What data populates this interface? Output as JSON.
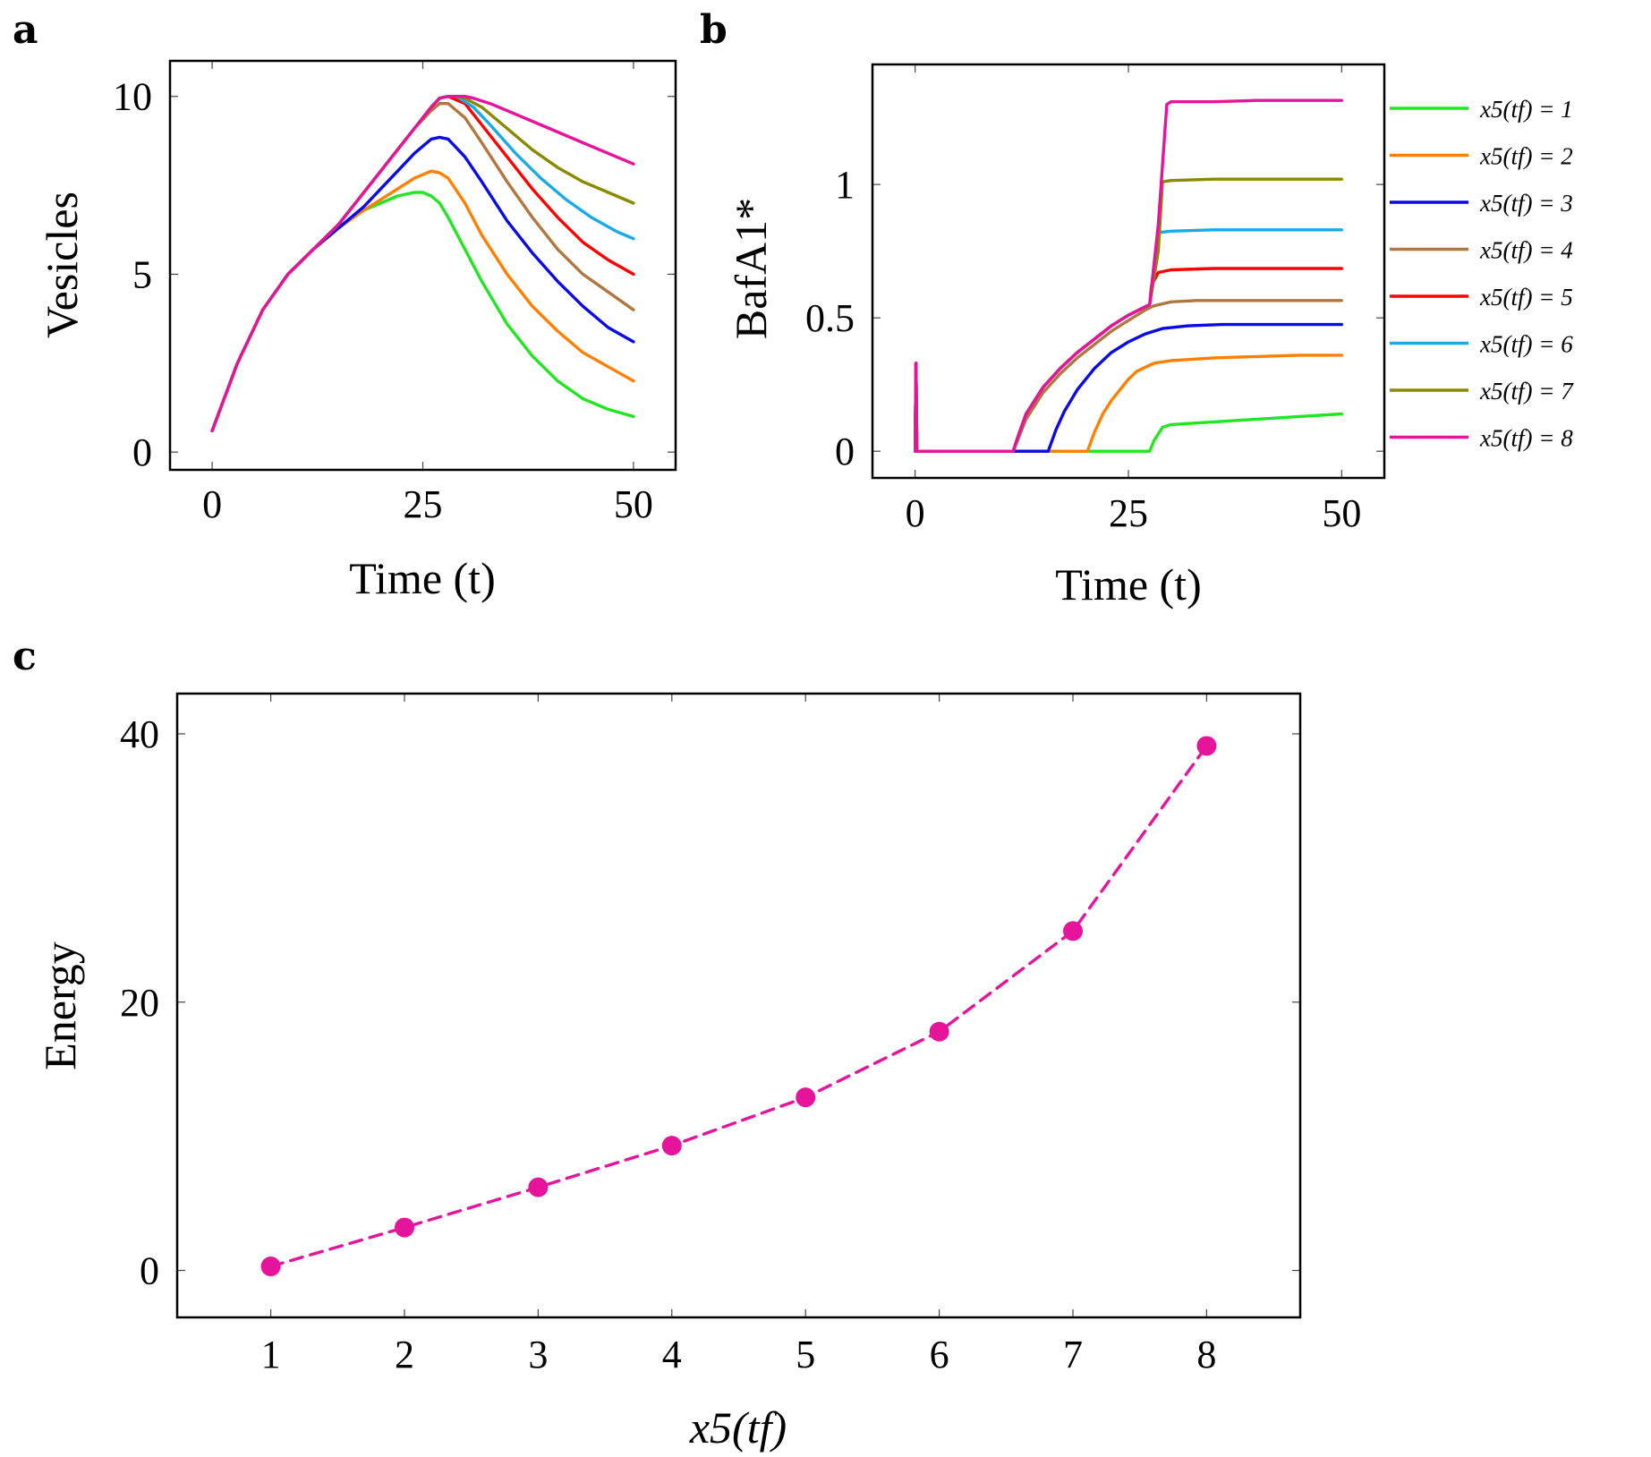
{
  "chart_data": [
    {
      "panel": "a",
      "type": "line",
      "title": "",
      "xlabel": "Time (t)",
      "ylabel": "Vesicles",
      "xlim": [
        -5,
        55
      ],
      "ylim": [
        -0.5,
        11
      ],
      "xticks": [
        0,
        25,
        50
      ],
      "yticks": [
        0,
        5,
        10
      ],
      "grid": false,
      "series": [
        {
          "color": "#22e622",
          "x": [
            0,
            3,
            6,
            9,
            12,
            15,
            18,
            20,
            22,
            24,
            25,
            26,
            27,
            28,
            30,
            32,
            35,
            38,
            41,
            44,
            47,
            50
          ],
          "y": [
            0.6,
            2.5,
            4.0,
            5.0,
            5.7,
            6.3,
            6.8,
            7.0,
            7.2,
            7.3,
            7.3,
            7.2,
            7.0,
            6.6,
            5.7,
            4.8,
            3.6,
            2.7,
            2.0,
            1.5,
            1.2,
            1.0
          ]
        },
        {
          "color": "#ff8000",
          "x": [
            0,
            3,
            6,
            9,
            12,
            15,
            18,
            20,
            22,
            24,
            26,
            27,
            28,
            30,
            32,
            35,
            38,
            41,
            44,
            47,
            50
          ],
          "y": [
            0.6,
            2.5,
            4.0,
            5.0,
            5.7,
            6.3,
            6.8,
            7.1,
            7.4,
            7.7,
            7.9,
            7.85,
            7.7,
            7.0,
            6.1,
            5.0,
            4.1,
            3.4,
            2.8,
            2.4,
            2.0
          ]
        },
        {
          "color": "#0a0ae6",
          "x": [
            0,
            3,
            6,
            9,
            12,
            15,
            18,
            20,
            22,
            24,
            26,
            27,
            28,
            30,
            32,
            35,
            38,
            41,
            44,
            47,
            50
          ],
          "y": [
            0.6,
            2.5,
            4.0,
            5.0,
            5.7,
            6.3,
            6.9,
            7.4,
            7.9,
            8.4,
            8.8,
            8.85,
            8.8,
            8.3,
            7.6,
            6.5,
            5.6,
            4.8,
            4.1,
            3.5,
            3.1
          ]
        },
        {
          "color": "#b07840",
          "x": [
            0,
            3,
            6,
            9,
            12,
            15,
            18,
            21,
            24,
            26,
            27,
            28,
            30,
            32,
            35,
            38,
            41,
            44,
            47,
            50
          ],
          "y": [
            0.6,
            2.5,
            4.0,
            5.0,
            5.7,
            6.4,
            7.3,
            8.2,
            9.1,
            9.6,
            9.8,
            9.8,
            9.4,
            8.7,
            7.6,
            6.6,
            5.7,
            5.0,
            4.5,
            4.0
          ]
        },
        {
          "color": "#ff0000",
          "x": [
            0,
            3,
            6,
            9,
            12,
            15,
            18,
            21,
            24,
            26,
            27,
            28,
            30,
            32,
            35,
            38,
            41,
            44,
            47,
            50
          ],
          "y": [
            0.6,
            2.5,
            4.0,
            5.0,
            5.7,
            6.4,
            7.3,
            8.2,
            9.1,
            9.7,
            9.95,
            10.0,
            9.8,
            9.2,
            8.3,
            7.4,
            6.6,
            5.9,
            5.4,
            5.0
          ]
        },
        {
          "color": "#1aaae6",
          "x": [
            0,
            3,
            6,
            9,
            12,
            15,
            18,
            21,
            24,
            26,
            27,
            28,
            29,
            31,
            33,
            36,
            39,
            42,
            45,
            48,
            50
          ],
          "y": [
            0.6,
            2.5,
            4.0,
            5.0,
            5.7,
            6.4,
            7.3,
            8.2,
            9.1,
            9.7,
            9.95,
            10.0,
            10.0,
            9.7,
            9.2,
            8.4,
            7.7,
            7.1,
            6.6,
            6.2,
            6.0
          ]
        },
        {
          "color": "#8a8a00",
          "x": [
            0,
            3,
            6,
            9,
            12,
            15,
            18,
            21,
            24,
            26,
            27,
            28,
            29,
            30,
            32,
            35,
            38,
            41,
            44,
            47,
            50
          ],
          "y": [
            0.6,
            2.5,
            4.0,
            5.0,
            5.7,
            6.4,
            7.3,
            8.2,
            9.1,
            9.7,
            9.95,
            10.0,
            10.0,
            9.95,
            9.7,
            9.1,
            8.5,
            8.0,
            7.6,
            7.3,
            7.0
          ]
        },
        {
          "color": "#e6149b",
          "x": [
            0,
            3,
            6,
            9,
            12,
            15,
            18,
            21,
            24,
            26,
            27,
            28,
            29,
            30,
            31,
            33,
            36,
            39,
            42,
            45,
            48,
            50
          ],
          "y": [
            0.6,
            2.5,
            4.0,
            5.0,
            5.7,
            6.4,
            7.3,
            8.2,
            9.1,
            9.7,
            9.95,
            10.0,
            10.0,
            10.0,
            9.95,
            9.8,
            9.5,
            9.2,
            8.9,
            8.6,
            8.3,
            8.1
          ]
        }
      ]
    },
    {
      "panel": "b",
      "type": "line",
      "title": "",
      "xlabel": "Time (t)",
      "ylabel": "BafA1*",
      "xlim": [
        -5,
        55
      ],
      "ylim": [
        -0.1,
        1.45
      ],
      "xticks": [
        0,
        25,
        50
      ],
      "yticks": [
        0,
        0.5,
        1
      ],
      "ytick_labels": [
        "0",
        "0.5",
        "1"
      ],
      "grid": false,
      "legend": "outside-right",
      "series": [
        {
          "name": "x5(tf) = 1",
          "color": "#22e622",
          "x": [
            0,
            0.1,
            0.2,
            0.5,
            1,
            5,
            10,
            15,
            20,
            25,
            27.5,
            28,
            29,
            30,
            35,
            40,
            45,
            50
          ],
          "y": [
            0,
            0.33,
            0.0,
            0.0,
            0.0,
            0.0,
            0.0,
            0.0,
            0.0,
            0.0,
            0.0,
            0.04,
            0.09,
            0.1,
            0.11,
            0.12,
            0.13,
            0.14
          ]
        },
        {
          "name": "x5(tf) = 2",
          "color": "#ff8000",
          "x": [
            0,
            0.1,
            0.2,
            0.5,
            1,
            5,
            10,
            15,
            20,
            20.2,
            21,
            22,
            23,
            24,
            25,
            26,
            28,
            30,
            35,
            40,
            45,
            50
          ],
          "y": [
            0,
            0.33,
            0.0,
            0.0,
            0.0,
            0.0,
            0.0,
            0.0,
            0.0,
            0.0,
            0.07,
            0.14,
            0.19,
            0.23,
            0.27,
            0.3,
            0.33,
            0.34,
            0.35,
            0.355,
            0.36,
            0.36
          ]
        },
        {
          "name": "x5(tf) = 3",
          "color": "#0a0ae6",
          "x": [
            0,
            0.1,
            0.2,
            0.5,
            1,
            5,
            10,
            15,
            15.6,
            16.5,
            17.5,
            19,
            21,
            23,
            25,
            27,
            29,
            32,
            36,
            40,
            45,
            50
          ],
          "y": [
            0,
            0.33,
            0.0,
            0.0,
            0.0,
            0.0,
            0.0,
            0.0,
            0.0,
            0.08,
            0.15,
            0.23,
            0.31,
            0.37,
            0.41,
            0.44,
            0.46,
            0.47,
            0.475,
            0.475,
            0.475,
            0.475
          ]
        },
        {
          "name": "x5(tf) = 4",
          "color": "#b07840",
          "x": [
            0,
            0.1,
            0.2,
            0.5,
            1,
            5,
            10,
            11.5,
            12,
            13,
            15,
            17,
            19,
            21,
            23,
            25,
            27,
            28,
            30,
            33,
            37,
            42,
            50
          ],
          "y": [
            0,
            0.33,
            0.0,
            0.0,
            0.0,
            0.0,
            0.0,
            0.0,
            0.04,
            0.12,
            0.22,
            0.29,
            0.35,
            0.4,
            0.45,
            0.49,
            0.53,
            0.545,
            0.56,
            0.565,
            0.565,
            0.565,
            0.565
          ]
        },
        {
          "name": "x5(tf) = 5",
          "color": "#ff0000",
          "x": [
            0,
            0.1,
            0.2,
            0.5,
            1,
            5,
            10,
            11.5,
            12,
            13,
            15,
            17,
            19,
            21,
            23,
            25,
            27.5,
            27.7,
            28.5,
            30,
            35,
            40,
            50
          ],
          "y": [
            0,
            0.33,
            0.0,
            0.0,
            0.0,
            0.0,
            0.0,
            0.0,
            0.05,
            0.14,
            0.24,
            0.31,
            0.37,
            0.42,
            0.47,
            0.51,
            0.55,
            0.62,
            0.67,
            0.68,
            0.685,
            0.685,
            0.685
          ]
        },
        {
          "name": "x5(tf) = 6",
          "color": "#1aaae6",
          "x": [
            0,
            0.1,
            0.2,
            0.5,
            1,
            5,
            10,
            11.5,
            12,
            13,
            15,
            17,
            19,
            21,
            23,
            25,
            27.5,
            28,
            28.5,
            30,
            35,
            40,
            50
          ],
          "y": [
            0,
            0.33,
            0.0,
            0.0,
            0.0,
            0.0,
            0.0,
            0.0,
            0.05,
            0.14,
            0.24,
            0.31,
            0.37,
            0.42,
            0.47,
            0.51,
            0.55,
            0.7,
            0.82,
            0.825,
            0.83,
            0.83,
            0.83
          ]
        },
        {
          "name": "x5(tf) = 7",
          "color": "#8a8a00",
          "x": [
            0,
            0.1,
            0.2,
            0.5,
            1,
            5,
            10,
            11.5,
            12,
            13,
            15,
            17,
            19,
            21,
            23,
            25,
            27.5,
            28.5,
            29,
            30,
            35,
            40,
            50
          ],
          "y": [
            0,
            0.33,
            0.0,
            0.0,
            0.0,
            0.0,
            0.0,
            0.0,
            0.05,
            0.14,
            0.24,
            0.31,
            0.37,
            0.42,
            0.47,
            0.51,
            0.55,
            0.75,
            1.01,
            1.015,
            1.02,
            1.02,
            1.02
          ]
        },
        {
          "name": "x5(tf) = 8",
          "color": "#e6149b",
          "x": [
            0,
            0.1,
            0.2,
            0.5,
            1,
            5,
            10,
            11.5,
            12,
            13,
            15,
            17,
            19,
            21,
            23,
            25,
            27.5,
            28.5,
            29.5,
            30,
            35,
            40,
            50
          ],
          "y": [
            0,
            0.33,
            0.0,
            0.0,
            0.0,
            0.0,
            0.0,
            0.0,
            0.05,
            0.14,
            0.24,
            0.31,
            0.37,
            0.42,
            0.47,
            0.51,
            0.55,
            0.85,
            1.3,
            1.31,
            1.31,
            1.315,
            1.315
          ]
        }
      ]
    },
    {
      "panel": "c",
      "type": "line",
      "title": "",
      "xlabel": "x5(tf)",
      "ylabel": "Energy",
      "xlim": [
        0.3,
        8.7
      ],
      "ylim": [
        -3.5,
        43
      ],
      "xticks": [
        1,
        2,
        3,
        4,
        5,
        6,
        7,
        8
      ],
      "yticks": [
        0,
        20,
        40
      ],
      "grid": false,
      "line_style": "dashed",
      "marker": "circle",
      "series": [
        {
          "color": "#e6149b",
          "x": [
            1,
            2,
            3,
            4,
            5,
            6,
            7,
            8
          ],
          "y": [
            0.3,
            3.2,
            6.2,
            9.3,
            12.9,
            17.8,
            25.3,
            39.1
          ]
        }
      ]
    }
  ],
  "panels": {
    "a": {
      "letter": "a"
    },
    "b": {
      "letter": "b"
    },
    "c": {
      "letter": "c"
    }
  }
}
